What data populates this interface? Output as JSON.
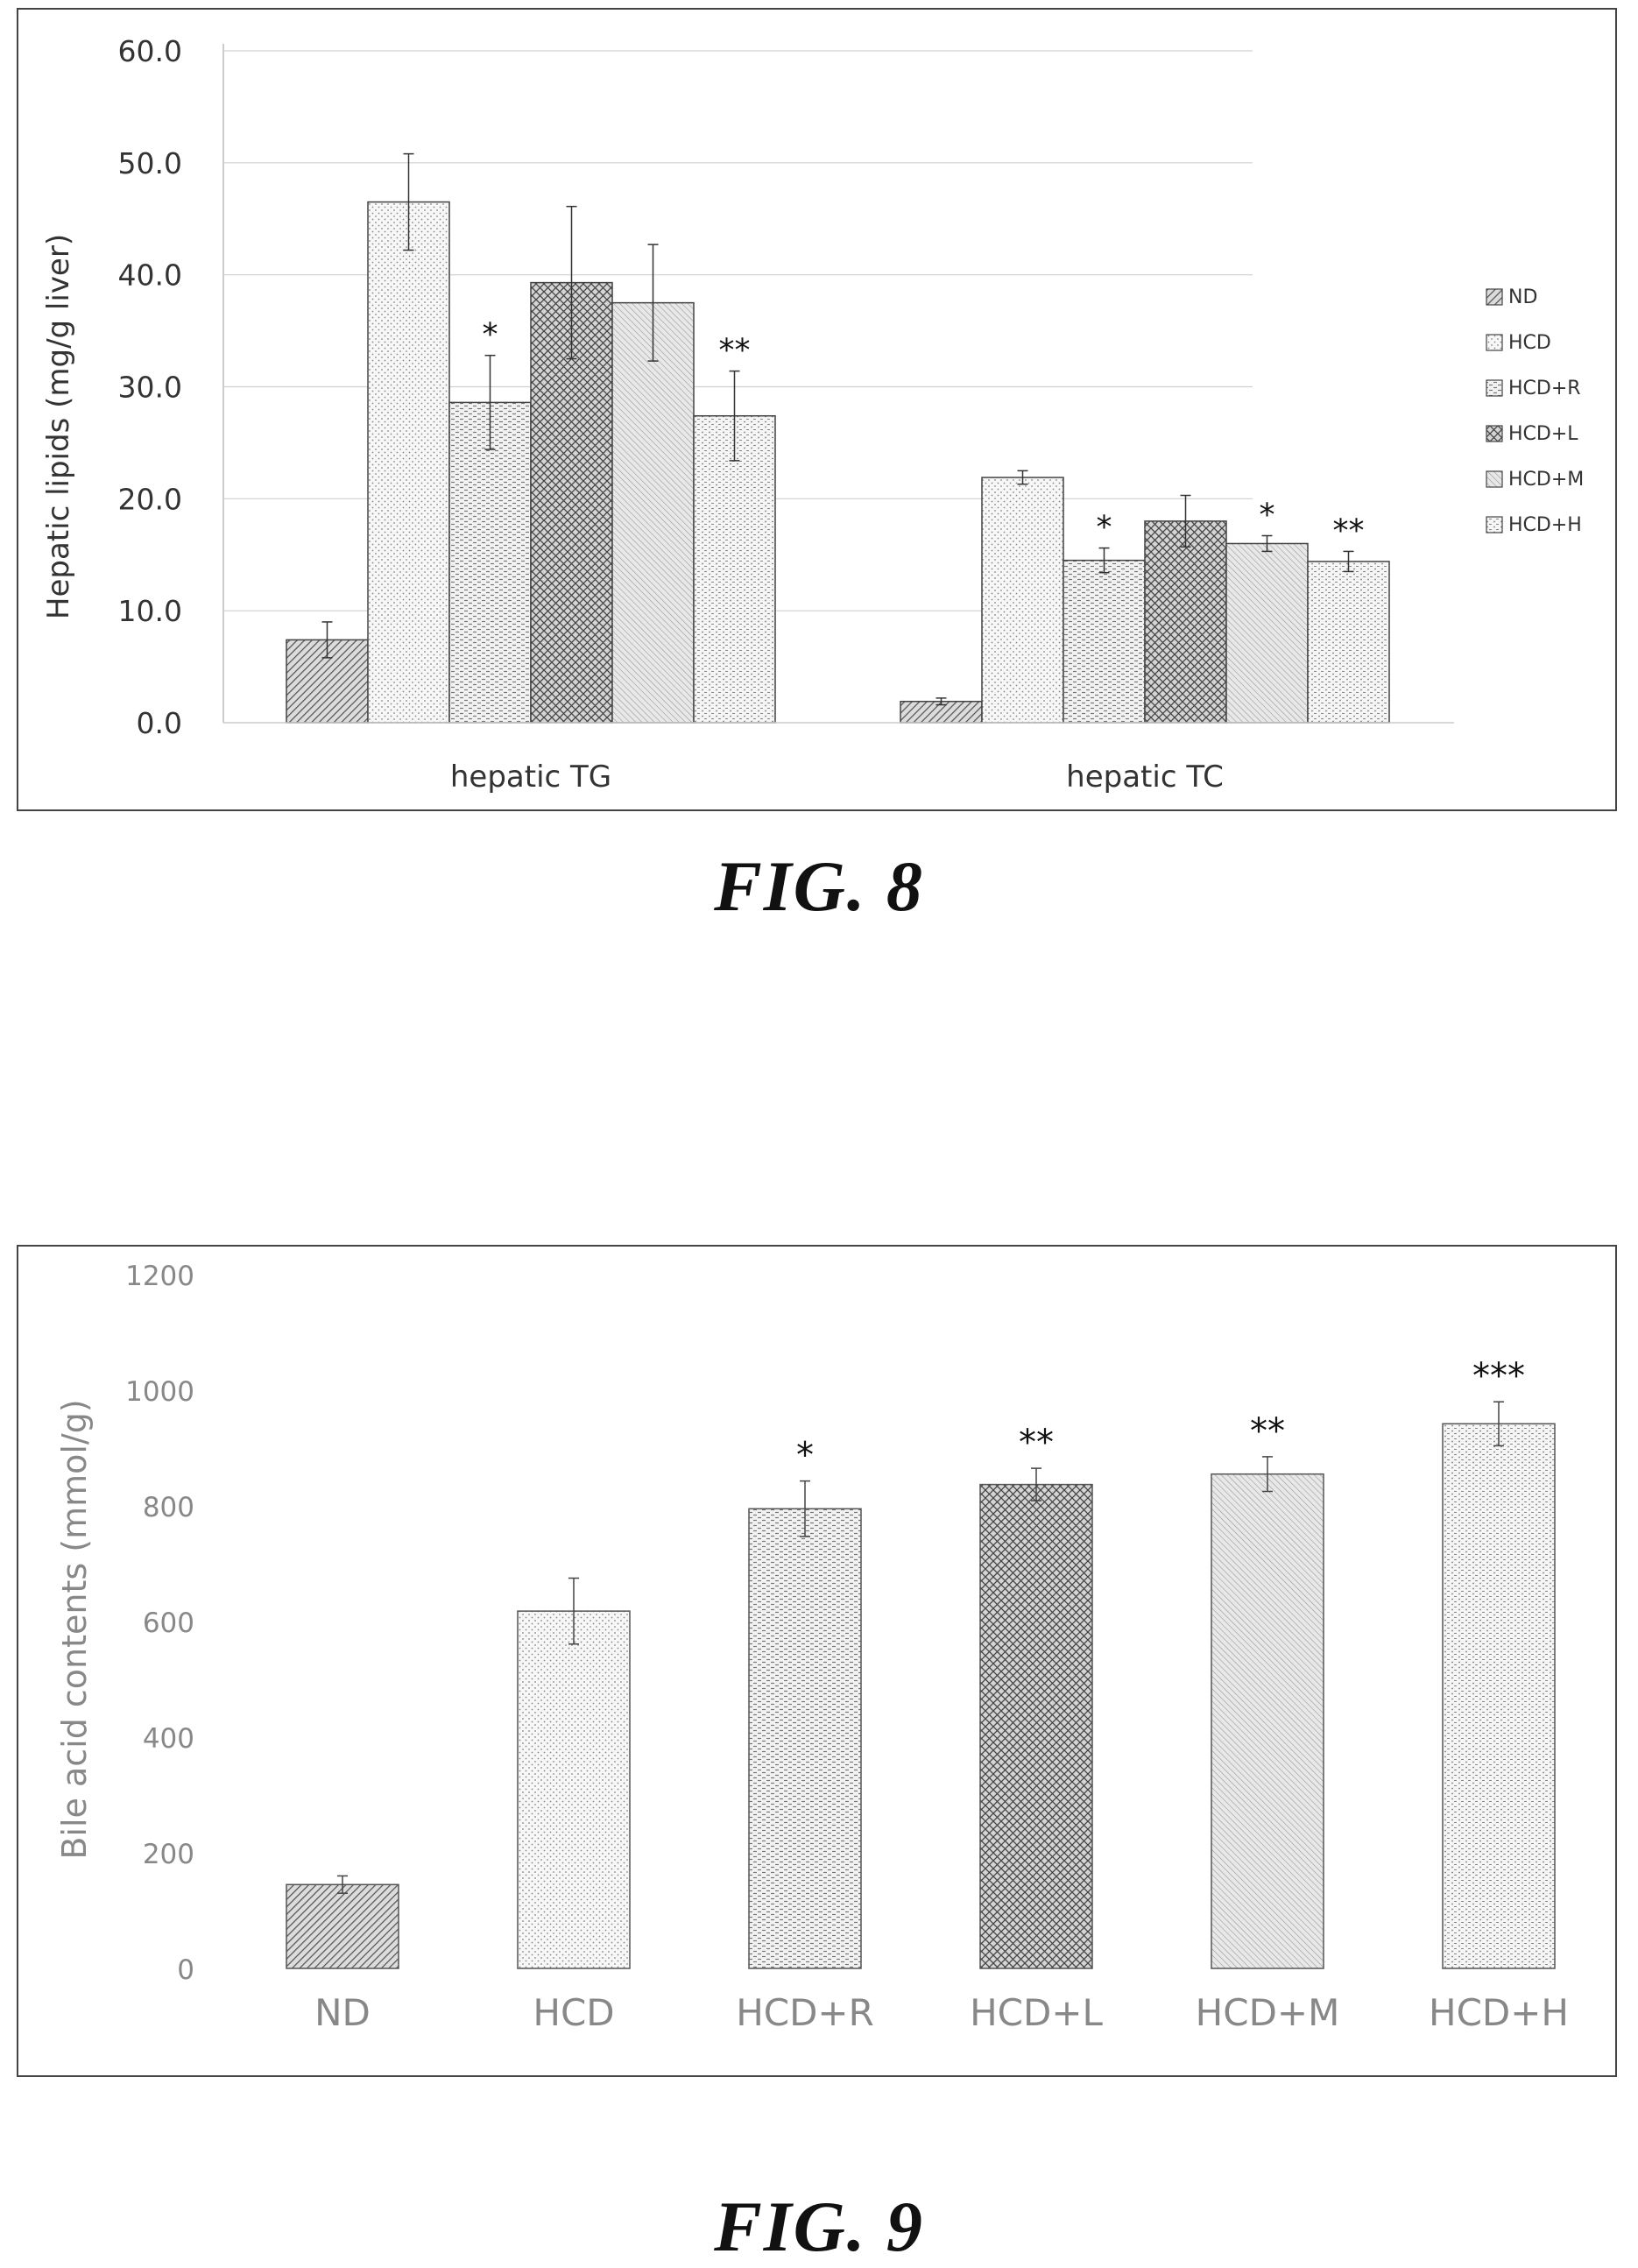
{
  "figures": [
    {
      "caption": "FIG. 8"
    },
    {
      "caption": "FIG. 9"
    }
  ],
  "chart_data": [
    {
      "type": "bar",
      "title": "",
      "ylabel": "Hepatic lipids (mg/g liver)",
      "xlabel": "",
      "ylim": [
        0,
        60
      ],
      "yticks": [
        "0.0",
        "10.0",
        "20.0",
        "30.0",
        "40.0",
        "50.0",
        "60.0"
      ],
      "categories": [
        "hepatic TG",
        "hepatic TC"
      ],
      "legend_position": "right",
      "series": [
        {
          "name": "ND",
          "values": [
            7.4,
            1.9
          ],
          "errors": [
            1.6,
            0.3
          ],
          "significance": [
            "",
            ""
          ]
        },
        {
          "name": "HCD",
          "values": [
            46.5,
            21.9
          ],
          "errors": [
            4.3,
            0.6
          ],
          "significance": [
            "",
            ""
          ]
        },
        {
          "name": "HCD+R",
          "values": [
            28.6,
            14.5
          ],
          "errors": [
            4.2,
            1.1
          ],
          "significance": [
            "*",
            "*"
          ]
        },
        {
          "name": "HCD+L",
          "values": [
            39.3,
            18.0
          ],
          "errors": [
            6.8,
            2.3
          ],
          "significance": [
            "",
            ""
          ]
        },
        {
          "name": "HCD+M",
          "values": [
            37.5,
            16.0
          ],
          "errors": [
            5.2,
            0.7
          ],
          "significance": [
            "",
            "*"
          ]
        },
        {
          "name": "HCD+H",
          "values": [
            27.4,
            14.4
          ],
          "errors": [
            4.0,
            0.9
          ],
          "significance": [
            "**",
            "**"
          ]
        }
      ]
    },
    {
      "type": "bar",
      "title": "",
      "ylabel": "Bile acid contents (mmol/g)",
      "xlabel": "",
      "ylim": [
        0,
        1200
      ],
      "yticks": [
        "0",
        "200",
        "400",
        "600",
        "800",
        "1000",
        "1200"
      ],
      "categories": [
        "ND",
        "HCD",
        "HCD+R",
        "HCD+L",
        "HCD+M",
        "HCD+H"
      ],
      "values": [
        145,
        618,
        795,
        837,
        855,
        942
      ],
      "errors": [
        15,
        57,
        48,
        28,
        30,
        38
      ],
      "significance": [
        "",
        "",
        "*",
        "**",
        "**",
        "***"
      ]
    }
  ]
}
